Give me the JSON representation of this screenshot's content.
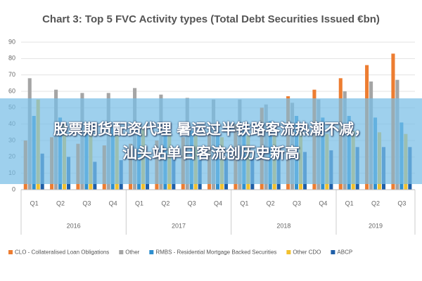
{
  "chart_data": {
    "type": "bar",
    "title": "Chart 3: Top 5 FVC Activity types (Total Debt Securities Issued €bn)",
    "categories": [
      "Q1",
      "Q2",
      "Q3",
      "Q4",
      "Q1",
      "Q2",
      "Q3",
      "Q4",
      "Q1",
      "Q2",
      "Q3",
      "Q4",
      "Q1",
      "Q2",
      "Q3"
    ],
    "category_groups": [
      {
        "label": "2016",
        "size": 4
      },
      {
        "label": "2017",
        "size": 4
      },
      {
        "label": "2018",
        "size": 4
      },
      {
        "label": "2019",
        "size": 3
      }
    ],
    "series": [
      {
        "name": "CLO - Collateralised Loan Obligations",
        "color": "#ed7d31",
        "values": [
          30,
          32,
          28,
          27,
          28,
          30,
          32,
          35,
          40,
          50,
          57,
          61,
          68,
          76,
          83
        ]
      },
      {
        "name": "Other",
        "color": "#a5a5a5",
        "values": [
          68,
          61,
          59,
          59,
          62,
          58,
          56,
          55,
          55,
          52,
          53,
          55,
          60,
          66,
          67
        ]
      },
      {
        "name": "RMBS - Residential Mortgage Backed Securities",
        "color": "#2e8fcf",
        "values": [
          45,
          44,
          40,
          38,
          40,
          38,
          36,
          36,
          40,
          42,
          45,
          44,
          45,
          44,
          41
        ]
      },
      {
        "name": "Other CDO",
        "color": "#f2c12e",
        "values": [
          55,
          40,
          36,
          33,
          38,
          35,
          33,
          32,
          33,
          34,
          36,
          34,
          36,
          35,
          34
        ]
      },
      {
        "name": "ABCP",
        "color": "#1f5fa8",
        "values": [
          22,
          20,
          17,
          18,
          20,
          19,
          18,
          19,
          20,
          22,
          23,
          24,
          26,
          26,
          26
        ]
      }
    ],
    "ylim": [
      0,
      90
    ],
    "yticks": [
      0,
      10,
      20,
      30,
      40,
      50,
      60,
      70,
      80,
      90
    ],
    "grid": true,
    "legend": "bottom"
  },
  "overlay": {
    "lines": [
      "股票期货配资代理 暑运过半铁路客流热潮不减，",
      "汕头站单日客流创历史新高"
    ]
  }
}
